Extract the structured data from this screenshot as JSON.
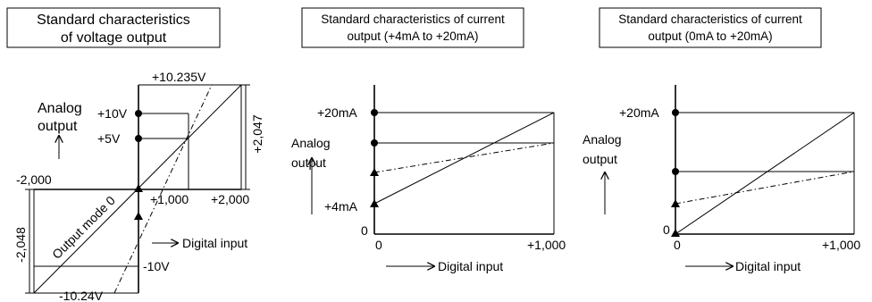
{
  "diagram1": {
    "title_line1": "Standard characteristics",
    "title_line2": "of voltage output",
    "y_label_1": "Analog",
    "y_label_2": "output",
    "arrow_up": "↑",
    "v_top_max": "+10.235V",
    "v_10": "+10V",
    "v_5": "+5V",
    "x_neg": "-2,000",
    "x_1000": "+1,000",
    "x_2000": "+2,000",
    "right_dim": "+2,047",
    "left_dim": "-2,048",
    "mode_label": "Output mode 0",
    "x_axis_label": "Digital input",
    "v_neg10": "-10V",
    "v_bottom_max": "-10.24V"
  },
  "diagram2": {
    "title_line1": "Standard characteristics of current",
    "title_line2": "output (+4mA to +20mA)",
    "y_20": "+20mA",
    "y_label_1": "Analog",
    "y_label_2": "output",
    "y_4": "+4mA",
    "origin_y": "0",
    "origin_x": "0",
    "x_max": "+1,000",
    "x_axis_label": "Digital input"
  },
  "diagram3": {
    "title_line1": "Standard characteristics of current",
    "title_line2": "output (0mA to +20mA)",
    "y_20": "+20mA",
    "y_label_1": "Analog",
    "y_label_2": "output",
    "origin_y": "0",
    "origin_x": "0",
    "x_max": "+1,000",
    "x_axis_label": "Digital input"
  }
}
